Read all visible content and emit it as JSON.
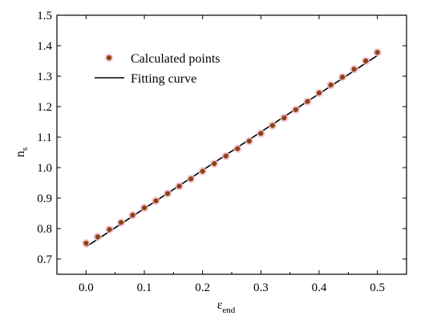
{
  "chart_data": {
    "type": "scatter",
    "xlabel": "ε",
    "xlabel_sub": "end",
    "ylabel": "n",
    "ylabel_sub": "s",
    "xlim": [
      -0.05,
      0.55
    ],
    "ylim": [
      0.65,
      1.5
    ],
    "x_ticks": [
      0.0,
      0.1,
      0.2,
      0.3,
      0.4,
      0.5
    ],
    "y_ticks": [
      0.7,
      0.8,
      0.9,
      1.0,
      1.1,
      1.2,
      1.3,
      1.4,
      1.5
    ],
    "x_tick_labels": [
      "0.0",
      "0.1",
      "0.2",
      "0.3",
      "0.4",
      "0.5"
    ],
    "y_tick_labels": [
      "0.7",
      "0.8",
      "0.9",
      "1.0",
      "1.1",
      "1.2",
      "1.3",
      "1.4",
      "1.5"
    ],
    "grid": false,
    "legend_position": "top-left",
    "series": [
      {
        "name": "Calculated points",
        "kind": "scatter",
        "color": "#8B4513",
        "x": [
          0.0,
          0.02,
          0.04,
          0.06,
          0.08,
          0.1,
          0.12,
          0.14,
          0.16,
          0.18,
          0.2,
          0.22,
          0.24,
          0.26,
          0.28,
          0.3,
          0.32,
          0.34,
          0.36,
          0.38,
          0.4,
          0.42,
          0.44,
          0.46,
          0.48,
          0.5
        ],
        "y": [
          0.752,
          0.773,
          0.797,
          0.82,
          0.844,
          0.868,
          0.891,
          0.915,
          0.939,
          0.963,
          0.988,
          1.013,
          1.038,
          1.062,
          1.087,
          1.112,
          1.138,
          1.163,
          1.19,
          1.217,
          1.245,
          1.271,
          1.297,
          1.323,
          1.35,
          1.378
        ]
      },
      {
        "name": "Fitting curve",
        "kind": "line",
        "color": "#000000",
        "x": [
          0.0,
          0.5
        ],
        "y": [
          0.74,
          1.368
        ]
      }
    ]
  }
}
